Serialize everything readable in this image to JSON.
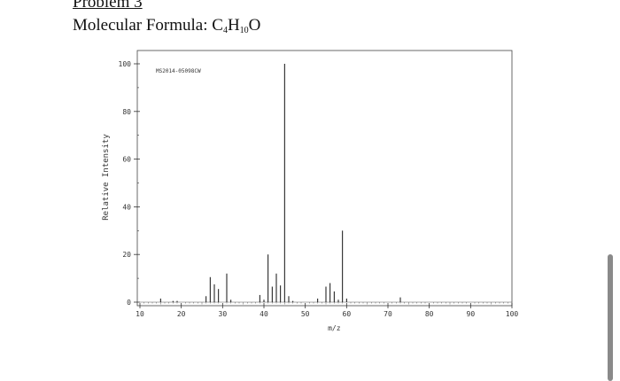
{
  "header": {
    "problem_title": "Problem 3",
    "formula_prefix": "Molecular Formula: ",
    "formula_parts": [
      {
        "el": "C",
        "n": "4"
      },
      {
        "el": "H",
        "n": "10"
      },
      {
        "el": "O",
        "n": ""
      }
    ]
  },
  "chart_data": {
    "type": "bar",
    "title": "",
    "annotation": "MS2014-05098CW",
    "xlabel": "m/z",
    "ylabel": "Relative Intensity",
    "xlim": [
      10,
      100
    ],
    "ylim": [
      0,
      100
    ],
    "xticks": [
      10,
      20,
      30,
      40,
      50,
      60,
      70,
      80,
      90,
      100
    ],
    "yticks": [
      0,
      20,
      40,
      60,
      80,
      100
    ],
    "grid": false,
    "peaks": [
      {
        "mz": 15,
        "intensity": 1.5
      },
      {
        "mz": 18,
        "intensity": 0.5
      },
      {
        "mz": 19,
        "intensity": 0.5
      },
      {
        "mz": 26,
        "intensity": 2.5
      },
      {
        "mz": 27,
        "intensity": 10.5
      },
      {
        "mz": 28,
        "intensity": 7.5
      },
      {
        "mz": 29,
        "intensity": 5.5
      },
      {
        "mz": 31,
        "intensity": 12
      },
      {
        "mz": 32,
        "intensity": 1
      },
      {
        "mz": 39,
        "intensity": 3
      },
      {
        "mz": 40,
        "intensity": 1
      },
      {
        "mz": 41,
        "intensity": 20
      },
      {
        "mz": 42,
        "intensity": 6.5
      },
      {
        "mz": 43,
        "intensity": 12
      },
      {
        "mz": 44,
        "intensity": 7
      },
      {
        "mz": 45,
        "intensity": 100
      },
      {
        "mz": 46,
        "intensity": 2.5
      },
      {
        "mz": 47,
        "intensity": 0.5
      },
      {
        "mz": 53,
        "intensity": 1.5
      },
      {
        "mz": 55,
        "intensity": 6.5
      },
      {
        "mz": 56,
        "intensity": 8
      },
      {
        "mz": 57,
        "intensity": 4.5
      },
      {
        "mz": 58,
        "intensity": 1
      },
      {
        "mz": 59,
        "intensity": 30
      },
      {
        "mz": 60,
        "intensity": 1.5
      },
      {
        "mz": 73,
        "intensity": 2
      }
    ]
  }
}
